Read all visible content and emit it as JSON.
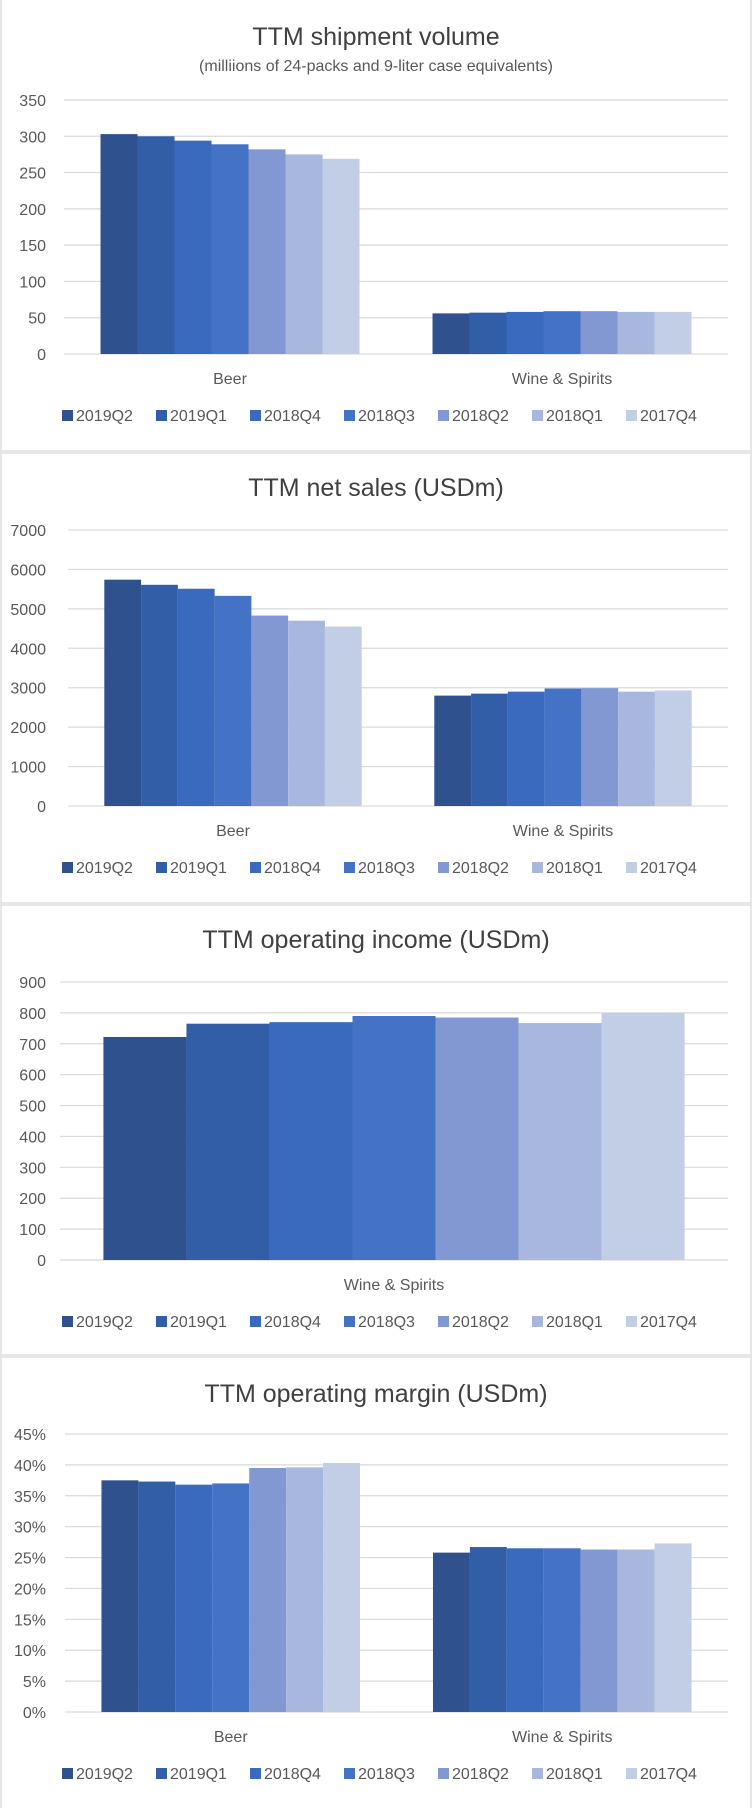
{
  "colors": {
    "2019Q2": "#2f528f",
    "2019Q1": "#325ea8",
    "2018Q4": "#3a6abd",
    "2018Q3": "#4472c4",
    "2018Q2": "#8198d3",
    "2018Q1": "#a8b7dd",
    "2017Q4": "#c2cde6",
    "grid": "#d9d9d9",
    "text": "#595959",
    "title": "#404040"
  },
  "chart_data": [
    {
      "type": "bar",
      "title": "TTM shipment volume",
      "subtitle": "(milliions of 24-packs and 9-liter case equivalents)",
      "categories": [
        "Beer",
        "Wine & Spirits"
      ],
      "ylim": [
        0,
        350
      ],
      "yticks": [
        "0",
        "50",
        "100",
        "150",
        "200",
        "250",
        "300",
        "350"
      ],
      "legend_position": "bottom",
      "series": [
        {
          "name": "2019Q2",
          "values": [
            303,
            56
          ]
        },
        {
          "name": "2019Q1",
          "values": [
            300,
            57
          ]
        },
        {
          "name": "2018Q4",
          "values": [
            294,
            58
          ]
        },
        {
          "name": "2018Q3",
          "values": [
            289,
            59
          ]
        },
        {
          "name": "2018Q2",
          "values": [
            282,
            59
          ]
        },
        {
          "name": "2018Q1",
          "values": [
            275,
            58
          ]
        },
        {
          "name": "2017Q4",
          "values": [
            269,
            58
          ]
        }
      ]
    },
    {
      "type": "bar",
      "title": "TTM net sales (USDm)",
      "subtitle": "",
      "categories": [
        "Beer",
        "Wine & Spirits"
      ],
      "ylim": [
        0,
        7000
      ],
      "yticks": [
        "0",
        "1000",
        "2000",
        "3000",
        "4000",
        "5000",
        "6000",
        "7000"
      ],
      "legend_position": "bottom",
      "series": [
        {
          "name": "2019Q2",
          "values": [
            5740,
            2800
          ]
        },
        {
          "name": "2019Q1",
          "values": [
            5610,
            2850
          ]
        },
        {
          "name": "2018Q4",
          "values": [
            5510,
            2900
          ]
        },
        {
          "name": "2018Q3",
          "values": [
            5330,
            2980
          ]
        },
        {
          "name": "2018Q2",
          "values": [
            4830,
            2990
          ]
        },
        {
          "name": "2018Q1",
          "values": [
            4700,
            2900
          ]
        },
        {
          "name": "2017Q4",
          "values": [
            4550,
            2930
          ]
        }
      ]
    },
    {
      "type": "bar",
      "title": "TTM operating income (USDm)",
      "subtitle": "",
      "categories": [
        "Wine & Spirits"
      ],
      "ylim": [
        0,
        900
      ],
      "yticks": [
        "0",
        "100",
        "200",
        "300",
        "400",
        "500",
        "600",
        "700",
        "800",
        "900"
      ],
      "legend_position": "bottom",
      "series": [
        {
          "name": "2019Q2",
          "values": [
            722
          ]
        },
        {
          "name": "2019Q1",
          "values": [
            765
          ]
        },
        {
          "name": "2018Q4",
          "values": [
            770
          ]
        },
        {
          "name": "2018Q3",
          "values": [
            790
          ]
        },
        {
          "name": "2018Q2",
          "values": [
            785
          ]
        },
        {
          "name": "2018Q1",
          "values": [
            767
          ]
        },
        {
          "name": "2017Q4",
          "values": [
            800
          ]
        }
      ]
    },
    {
      "type": "bar",
      "title": "TTM operating margin (USDm)",
      "subtitle": "",
      "categories": [
        "Beer",
        "Wine & Spirits"
      ],
      "ylim": [
        0,
        45
      ],
      "yticks": [
        "0%",
        "5%",
        "10%",
        "15%",
        "20%",
        "25%",
        "30%",
        "35%",
        "40%",
        "45%"
      ],
      "legend_position": "bottom",
      "series": [
        {
          "name": "2019Q2",
          "values": [
            37.5,
            25.8
          ]
        },
        {
          "name": "2019Q1",
          "values": [
            37.3,
            26.7
          ]
        },
        {
          "name": "2018Q4",
          "values": [
            36.8,
            26.5
          ]
        },
        {
          "name": "2018Q3",
          "values": [
            37.0,
            26.5
          ]
        },
        {
          "name": "2018Q2",
          "values": [
            39.5,
            26.3
          ]
        },
        {
          "name": "2018Q1",
          "values": [
            39.6,
            26.3
          ]
        },
        {
          "name": "2017Q4",
          "values": [
            40.3,
            27.3
          ]
        }
      ]
    }
  ]
}
